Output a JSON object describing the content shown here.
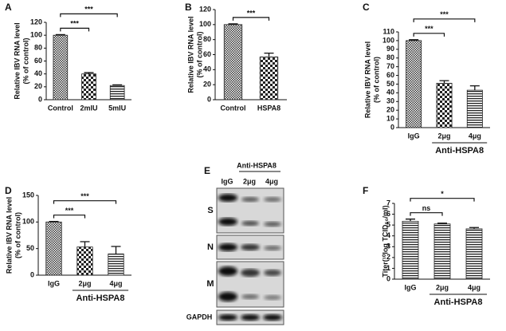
{
  "chart_data": [
    {
      "type": "bar",
      "panel": "A",
      "ylabel": [
        "Relative IBV RNA level",
        "(% of control)"
      ],
      "categories": [
        "Control",
        "2mIU",
        "5mIU"
      ],
      "values": [
        100,
        40,
        22
      ],
      "errors": [
        1,
        2,
        1
      ],
      "fills": [
        "dots",
        "checker",
        "hlines"
      ],
      "ylim": [
        0,
        120
      ],
      "yticks": [
        0,
        20,
        40,
        60,
        80,
        100,
        120
      ],
      "comparisons": [
        {
          "categories": [
            "Control",
            "2mIU"
          ],
          "label": "***"
        },
        {
          "categories": [
            "Control",
            "5mIU"
          ],
          "label": "***"
        }
      ]
    },
    {
      "type": "bar",
      "panel": "B",
      "ylabel": [
        "Relative IBV RNA level",
        "(% of control)"
      ],
      "categories": [
        "Control",
        "HSPA8"
      ],
      "values": [
        100,
        57
      ],
      "errors": [
        1,
        5
      ],
      "fills": [
        "dots",
        "checker"
      ],
      "ylim": [
        0,
        120
      ],
      "yticks": [
        0,
        20,
        40,
        60,
        80,
        100,
        120
      ],
      "comparisons": [
        {
          "categories": [
            "Control",
            "HSPA8"
          ],
          "label": "***"
        }
      ]
    },
    {
      "type": "bar",
      "panel": "C",
      "ylabel": [
        "Relative IBV RNA level",
        "(% of control)"
      ],
      "categories": [
        "IgG",
        "2μg",
        "4μg"
      ],
      "values": [
        100,
        51,
        43
      ],
      "errors": [
        1,
        3,
        5
      ],
      "fills": [
        "dots",
        "checker",
        "hlines"
      ],
      "ylim": [
        0,
        110
      ],
      "yticks": [
        0,
        10,
        20,
        30,
        40,
        50,
        60,
        70,
        80,
        90,
        100,
        110
      ],
      "group": {
        "label": "Anti-HSPA8",
        "categories": [
          "2μg",
          "4μg"
        ]
      },
      "comparisons": [
        {
          "categories": [
            "IgG",
            "2μg"
          ],
          "label": "***"
        },
        {
          "categories": [
            "IgG",
            "4μg"
          ],
          "label": "***"
        }
      ]
    },
    {
      "type": "bar",
      "panel": "D",
      "ylabel": [
        "Relative IBV RNA level",
        "(% of control)"
      ],
      "categories": [
        "IgG",
        "2μg",
        "4μg"
      ],
      "values": [
        100,
        53,
        40
      ],
      "errors": [
        1,
        10,
        14
      ],
      "fills": [
        "dots",
        "checker",
        "hlines"
      ],
      "ylim": [
        0,
        150
      ],
      "yticks": [
        0,
        50,
        100,
        150
      ],
      "group": {
        "label": "Anti-HSPA8",
        "categories": [
          "2μg",
          "4μg"
        ]
      },
      "comparisons": [
        {
          "categories": [
            "IgG",
            "2μg"
          ],
          "label": "***"
        },
        {
          "categories": [
            "IgG",
            "4μg"
          ],
          "label": "***"
        }
      ]
    },
    {
      "type": "bar",
      "panel": "F",
      "ylabel": [
        "Titer(¹⁰log TCID₅₀/ml)"
      ],
      "categories": [
        "IgG",
        "2μg",
        "4μg"
      ],
      "values": [
        5.35,
        5.1,
        4.65
      ],
      "errors": [
        0.2,
        0.07,
        0.12
      ],
      "fills": [
        "hlines",
        "hlines",
        "hlines"
      ],
      "ylim": [
        0,
        7
      ],
      "yticks": [
        0,
        1,
        2,
        3,
        4,
        5,
        6,
        7
      ],
      "group": {
        "label": "Anti-HSPA8",
        "categories": [
          "2μg",
          "4μg"
        ]
      },
      "comparisons": [
        {
          "categories": [
            "IgG",
            "2μg"
          ],
          "label": "ns"
        },
        {
          "categories": [
            "IgG",
            "4μg"
          ],
          "label": "*"
        }
      ]
    }
  ],
  "blot": {
    "panel": "E",
    "group": "Anti-HSPA8",
    "lanes": [
      "IgG",
      "2μg",
      "4μg"
    ],
    "bands": [
      "S",
      "N",
      "M",
      "GAPDH"
    ]
  }
}
